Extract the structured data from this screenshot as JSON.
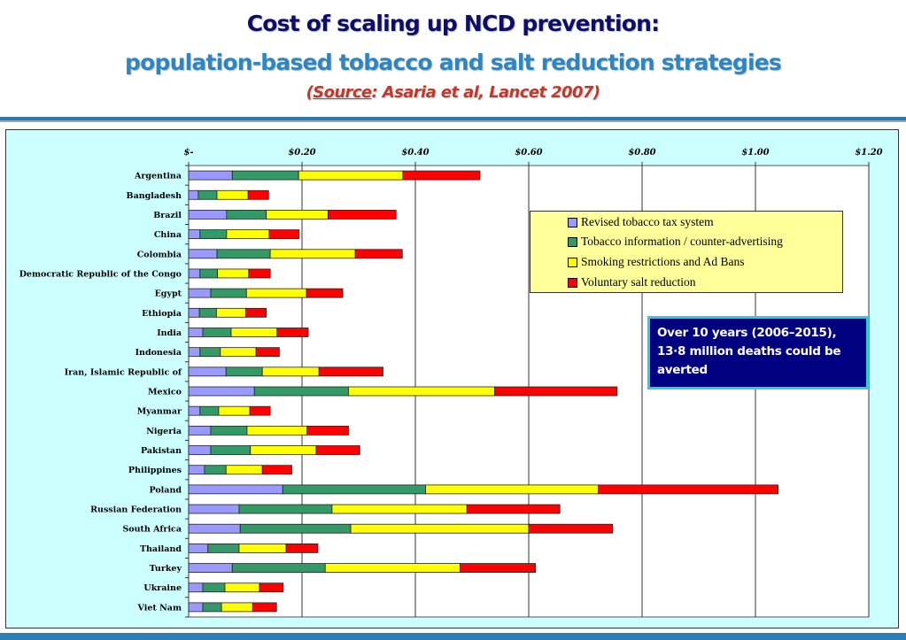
{
  "header": {
    "title_line1": "Cost of scaling up NCD prevention:",
    "title_line2": "population-based tobacco and salt reduction strategies",
    "source_open": "(",
    "source_word": "Source",
    "source_rest": ": Asaria et al, Lancet 2007)"
  },
  "callout": {
    "text": "Over 10 years (2006–2015), 13·8 million deaths could be averted"
  },
  "colors": {
    "title_dark": "#0d0d6b",
    "title_blue": "#2e86c1",
    "source_red": "#c0392b",
    "chart_bg": "#ccffff",
    "legend_bg": "#ffff99",
    "callout_bg": "#000080",
    "callout_border": "#33cccc"
  },
  "chart_data": {
    "type": "bar",
    "orientation": "horizontal",
    "stacked": true,
    "title": "",
    "xlabel": "",
    "ylabel": "",
    "xlim": [
      0,
      1.2
    ],
    "x_ticks": [
      0,
      0.2,
      0.4,
      0.6,
      0.8,
      1.0,
      1.2
    ],
    "x_tick_labels": [
      "$-",
      "$0.20",
      "$0.40",
      "$0.60",
      "$0.80",
      "$1.00",
      "$1.20"
    ],
    "x_axis_position": "top",
    "grid": true,
    "legend_position": "center-right",
    "categories": [
      "Argentina",
      "Bangladesh",
      "Brazil",
      "China",
      "Colombia",
      "Democratic Republic of the Congo",
      "Egypt",
      "Ethiopia",
      "India",
      "Indonesia",
      "Iran, Islamic Republic of",
      "Mexico",
      "Myanmar",
      "Nigeria",
      "Pakistan",
      "Philippines",
      "Poland",
      "Russian Federation",
      "South Africa",
      "Thailand",
      "Turkey",
      "Ukraine",
      "Viet Nam"
    ],
    "series": [
      {
        "name": "Revised tobacco tax system",
        "color": "#9999ff",
        "values": [
          0.077,
          0.017,
          0.067,
          0.02,
          0.05,
          0.02,
          0.039,
          0.019,
          0.025,
          0.02,
          0.066,
          0.116,
          0.02,
          0.039,
          0.039,
          0.028,
          0.166,
          0.089,
          0.091,
          0.034,
          0.077,
          0.025,
          0.025
        ]
      },
      {
        "name": "Tobacco information / counter-advertising",
        "color": "#339966",
        "values": [
          0.117,
          0.033,
          0.07,
          0.047,
          0.094,
          0.031,
          0.063,
          0.03,
          0.05,
          0.036,
          0.064,
          0.166,
          0.033,
          0.064,
          0.07,
          0.038,
          0.252,
          0.164,
          0.195,
          0.055,
          0.164,
          0.039,
          0.033
        ]
      },
      {
        "name": "Smoking restrictions and Ad Bans",
        "color": "#ffff00",
        "values": [
          0.184,
          0.055,
          0.109,
          0.075,
          0.15,
          0.055,
          0.106,
          0.052,
          0.081,
          0.063,
          0.1,
          0.258,
          0.055,
          0.106,
          0.116,
          0.064,
          0.305,
          0.238,
          0.314,
          0.083,
          0.238,
          0.061,
          0.055
        ]
      },
      {
        "name": "Voluntary salt reduction",
        "color": "#ff0000",
        "values": [
          0.136,
          0.036,
          0.12,
          0.053,
          0.083,
          0.038,
          0.064,
          0.036,
          0.055,
          0.041,
          0.113,
          0.216,
          0.036,
          0.073,
          0.077,
          0.052,
          0.317,
          0.164,
          0.148,
          0.056,
          0.133,
          0.042,
          0.042
        ]
      }
    ]
  }
}
